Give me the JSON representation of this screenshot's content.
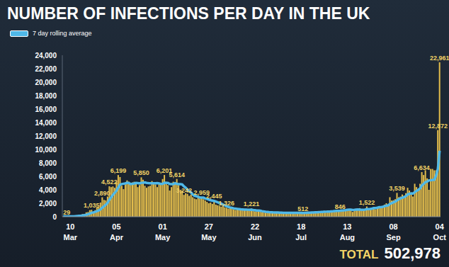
{
  "chart_data": {
    "type": "bar",
    "title": "NUMBER OF INFECTIONS PER DAY IN THE UK",
    "legend": "upper left",
    "data_labels": true,
    "grid": false,
    "categories": [
      null,
      null,
      null,
      null,
      "10 Mar",
      null,
      null,
      null,
      null,
      null,
      null,
      null,
      null,
      null,
      null,
      null,
      null,
      null,
      null,
      null,
      null,
      null,
      null,
      null,
      null,
      null,
      null,
      null,
      null,
      null,
      "05 Apr",
      null,
      null,
      null,
      null,
      null,
      null,
      null,
      null,
      null,
      null,
      null,
      null,
      null,
      null,
      null,
      null,
      null,
      null,
      null,
      null,
      null,
      null,
      null,
      null,
      null,
      "01 May",
      null,
      null,
      null,
      null,
      null,
      null,
      null,
      null,
      null,
      null,
      null,
      null,
      null,
      null,
      null,
      null,
      null,
      null,
      null,
      null,
      null,
      null,
      null,
      null,
      null,
      "27 May",
      null,
      null,
      null,
      null,
      null,
      null,
      null,
      null,
      null,
      null,
      null,
      null,
      null,
      null,
      null,
      null,
      null,
      null,
      null,
      null,
      null,
      null,
      null,
      null,
      null,
      "22 Jun",
      null,
      null,
      null,
      null,
      null,
      null,
      null,
      null,
      null,
      null,
      null,
      null,
      null,
      null,
      null,
      null,
      null,
      null,
      null,
      null,
      null,
      null,
      null,
      null,
      null,
      "18 Jul",
      null,
      null,
      null,
      null,
      null,
      null,
      null,
      null,
      null,
      null,
      null,
      null,
      null,
      null,
      null,
      null,
      null,
      null,
      null,
      null,
      null,
      null,
      null,
      null,
      null,
      "13 Aug",
      null,
      null,
      null,
      null,
      null,
      null,
      null,
      null,
      null,
      null,
      null,
      null,
      null,
      null,
      null,
      null,
      null,
      null,
      null,
      null,
      null,
      null,
      null,
      null,
      null,
      "08 Sep",
      null,
      null,
      null,
      null,
      null,
      null,
      null,
      null,
      null,
      null,
      null,
      null,
      null,
      null,
      null,
      null,
      null,
      null,
      null,
      null,
      null,
      null,
      null,
      null,
      null,
      "04 Oct"
    ],
    "series": [
      {
        "type": "bar",
        "color": "#e3bd4c",
        "values": [
          40,
          45,
          29,
          50,
          60,
          80,
          130,
          150,
          200,
          250,
          300,
          400,
          410,
          650,
          700,
          980,
          1035,
          670,
          970,
          1400,
          1450,
          2100,
          2890,
          2500,
          2430,
          3000,
          4522,
          4400,
          4500,
          4300,
          5200,
          6199,
          5900,
          4600,
          4100,
          4800,
          5400,
          5200,
          4800,
          5100,
          5200,
          4900,
          4400,
          4700,
          5850,
          5500,
          4600,
          4300,
          4500,
          4600,
          5300,
          5100,
          4800,
          4400,
          5000,
          4900,
          5600,
          6201,
          5200,
          4700,
          3900,
          4400,
          5200,
          5000,
          5614,
          4700,
          4000,
          3900,
          3242,
          3500,
          3400,
          3100,
          3300,
          2900,
          2700,
          2600,
          2900,
          2700,
          2959,
          2600,
          2400,
          2200,
          2000,
          2100,
          1900,
          2445,
          1800,
          1700,
          1600,
          1500,
          1700,
          1400,
          1326,
          1200,
          1300,
          1250,
          1100,
          1000,
          1200,
          1100,
          1050,
          980,
          1000,
          1100,
          950,
          900,
          1221,
          850,
          800,
          780,
          900,
          850,
          700,
          650,
          600,
          650,
          700,
          680,
          620,
          580,
          600,
          650,
          550,
          560,
          600,
          580,
          550,
          640,
          600,
          560,
          520,
          560,
          600,
          580,
          540,
          512,
          650,
          680,
          620,
          600,
          700,
          740,
          680,
          650,
          760,
          700,
          720,
          880,
          770,
          740,
          750,
          800,
          940,
          950,
          870,
          820,
          846,
          1060,
          950,
          1000,
          1060,
          1100,
          1040,
          710,
          1000,
          1180,
          1080,
          1280,
          1040,
          1030,
          1020,
          1522,
          1090,
          1200,
          1270,
          1450,
          1100,
          1400,
          1480,
          1300,
          1600,
          1800,
          2000,
          1800,
          2900,
          2400,
          2460,
          2600,
          3539,
          2900,
          3000,
          3300,
          3100,
          3500,
          4300,
          3900,
          3400,
          3000,
          4900,
          4400,
          3900,
          4900,
          6634,
          6200,
          6900,
          5700,
          4000,
          7100,
          7100,
          6900,
          6900,
          12872,
          22961
        ],
        "value_labels": [
          null,
          null,
          "29",
          null,
          null,
          null,
          null,
          null,
          null,
          null,
          null,
          null,
          null,
          null,
          null,
          null,
          "1,035",
          null,
          null,
          null,
          null,
          null,
          "2,890",
          null,
          null,
          null,
          "4,522",
          null,
          null,
          null,
          null,
          "6,199",
          null,
          null,
          null,
          null,
          null,
          null,
          null,
          null,
          null,
          null,
          null,
          null,
          "5,850",
          null,
          null,
          null,
          null,
          null,
          null,
          null,
          null,
          null,
          null,
          null,
          null,
          "6,201",
          null,
          null,
          null,
          null,
          null,
          null,
          "5,614",
          null,
          null,
          null,
          "3,242",
          null,
          null,
          null,
          null,
          null,
          null,
          null,
          null,
          null,
          "2,959",
          null,
          null,
          null,
          null,
          null,
          null,
          "2,445",
          null,
          null,
          null,
          null,
          null,
          null,
          "1,326",
          null,
          null,
          null,
          null,
          null,
          null,
          null,
          null,
          null,
          null,
          null,
          null,
          null,
          "1,221",
          null,
          null,
          null,
          null,
          null,
          null,
          null,
          null,
          null,
          null,
          null,
          null,
          null,
          null,
          null,
          null,
          null,
          null,
          null,
          null,
          null,
          null,
          null,
          null,
          null,
          null,
          null,
          null,
          "512",
          null,
          null,
          null,
          null,
          null,
          null,
          null,
          null,
          null,
          null,
          null,
          null,
          null,
          null,
          null,
          null,
          null,
          null,
          null,
          null,
          "846",
          null,
          null,
          null,
          null,
          null,
          null,
          null,
          null,
          null,
          null,
          null,
          null,
          null,
          null,
          "1,522",
          null,
          null,
          null,
          null,
          null,
          null,
          null,
          null,
          null,
          null,
          null,
          null,
          null,
          null,
          null,
          null,
          "3,539",
          null,
          null,
          null,
          null,
          null,
          null,
          null,
          null,
          null,
          null,
          null,
          null,
          null,
          "6,634",
          null,
          null,
          null,
          null,
          null,
          null,
          null,
          null,
          "12,872",
          "22,961"
        ]
      },
      {
        "name": "7 day rolling average",
        "type": "line",
        "color": "#4fb8e8",
        "values": [
          40,
          40,
          38,
          40,
          45,
          50,
          60,
          75,
          95,
          120,
          150,
          195,
          240,
          300,
          370,
          470,
          580,
          650,
          730,
          830,
          920,
          1080,
          1350,
          1570,
          1790,
          2050,
          2540,
          2870,
          3260,
          3530,
          3870,
          4330,
          4760,
          4860,
          4910,
          4950,
          5040,
          5000,
          4860,
          4900,
          4950,
          5030,
          5000,
          4960,
          5040,
          5060,
          5090,
          5030,
          4990,
          4970,
          4970,
          4980,
          4970,
          4990,
          4960,
          4880,
          4890,
          5040,
          5030,
          5020,
          4870,
          4850,
          4840,
          4990,
          4890,
          4830,
          4840,
          4800,
          4500,
          4300,
          4000,
          3800,
          3600,
          3300,
          3100,
          3050,
          2950,
          2850,
          2850,
          2850,
          2700,
          2650,
          2550,
          2450,
          2400,
          2350,
          2250,
          2150,
          2030,
          1960,
          1790,
          1700,
          1570,
          1460,
          1380,
          1320,
          1250,
          1200,
          1170,
          1140,
          1110,
          1090,
          1060,
          1060,
          1040,
          1020,
          1050,
          1000,
          970,
          930,
          920,
          900,
          830,
          780,
          740,
          720,
          690,
          670,
          650,
          640,
          620,
          620,
          610,
          600,
          590,
          590,
          590,
          590,
          590,
          590,
          580,
          580,
          580,
          570,
          570,
          560,
          570,
          590,
          600,
          610,
          630,
          640,
          660,
          670,
          690,
          700,
          720,
          740,
          750,
          760,
          770,
          790,
          810,
          840,
          860,
          880,
          900,
          930,
          950,
          980,
          1030,
          1040,
          1050,
          1000,
          1020,
          1050,
          1080,
          1060,
          1030,
          1030,
          1050,
          1120,
          1130,
          1150,
          1210,
          1280,
          1300,
          1340,
          1420,
          1420,
          1480,
          1560,
          1640,
          1700,
          1900,
          2000,
          2140,
          2240,
          2430,
          2600,
          2720,
          2840,
          2920,
          3060,
          3300,
          3390,
          3460,
          3440,
          3640,
          3850,
          4000,
          4200,
          4650,
          4860,
          5140,
          5220,
          5410,
          5420,
          5460,
          5490,
          6100,
          7100,
          9800
        ]
      }
    ],
    "ylim": [
      0,
      24000
    ],
    "yticks": [
      0,
      {
        "value": 2000,
        "label": "2,000"
      },
      {
        "value": 4000,
        "label": "4,000"
      },
      {
        "value": 6000,
        "label": "6,000"
      },
      {
        "value": 8000,
        "label": "8,000"
      },
      {
        "value": 10000,
        "label": "10,000"
      },
      {
        "value": 12000,
        "label": "12,000"
      },
      {
        "value": 14000,
        "label": "14,000"
      },
      {
        "value": 16000,
        "label": "16,000"
      },
      {
        "value": 18000,
        "label": "18,000"
      },
      {
        "value": 20000,
        "label": "20,000"
      },
      {
        "value": 22000,
        "label": "22,000"
      },
      {
        "value": 24000,
        "label": "24,000"
      }
    ],
    "annotation": {
      "label": "TOTAL",
      "text": "502,978"
    }
  }
}
